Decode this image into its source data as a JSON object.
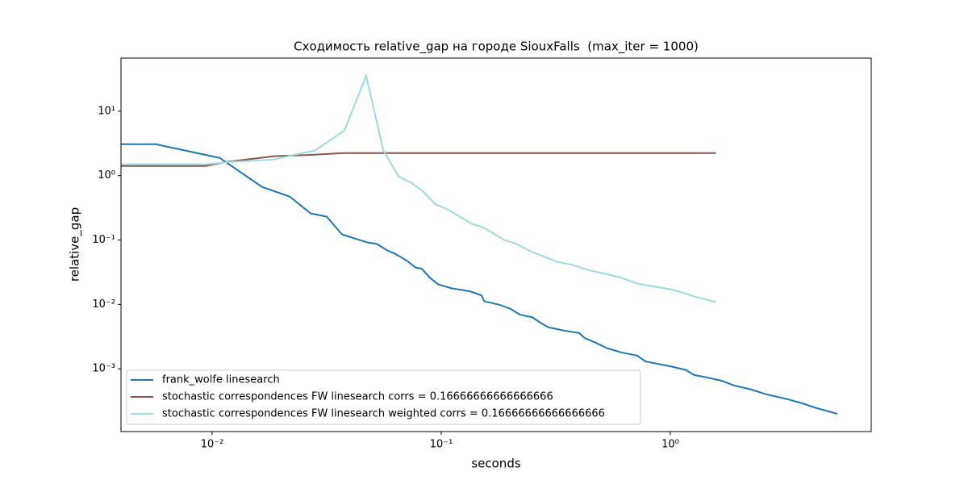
{
  "chart_data": {
    "type": "line",
    "title": "Сходимость relative_gap на городе SiouxFalls  (max_iter = 1000)",
    "x_label": "seconds",
    "y_label": "relative_gap",
    "xscale": "log",
    "yscale": "log",
    "xlim": [
      0.004,
      7.53
    ],
    "ylim": [
      0.000106,
      66.8
    ],
    "xticks": [
      {
        "value": 0.01,
        "label": "10⁻²"
      },
      {
        "value": 0.1,
        "label": "10⁻¹"
      },
      {
        "value": 1,
        "label": "10⁰"
      }
    ],
    "yticks": [
      {
        "value": 0.001,
        "label": "10⁻³"
      },
      {
        "value": 0.01,
        "label": "10⁻²"
      },
      {
        "value": 0.1,
        "label": "10⁻¹"
      },
      {
        "value": 1,
        "label": "10⁰"
      },
      {
        "value": 10,
        "label": "10¹"
      }
    ],
    "legend": "lower left",
    "series": [
      {
        "name": "frank_wolfe linesearch",
        "color": "#1f77b4",
        "x": [
          0.004,
          0.00567,
          0.0108,
          0.0165,
          0.0218,
          0.0269,
          0.0316,
          0.0369,
          0.0474,
          0.0523,
          0.0581,
          0.063,
          0.0711,
          0.0771,
          0.0823,
          0.0893,
          0.0968,
          0.111,
          0.134,
          0.15,
          0.154,
          0.181,
          0.201,
          0.221,
          0.25,
          0.271,
          0.294,
          0.346,
          0.4,
          0.423,
          0.478,
          0.527,
          0.61,
          0.718,
          0.779,
          0.991,
          1.17,
          1.27,
          1.43,
          1.68,
          1.9,
          2.24,
          2.63,
          3.22,
          3.78,
          4.27,
          5.36
        ],
        "values": [
          3.07,
          3.07,
          1.88,
          0.668,
          0.473,
          0.259,
          0.231,
          0.122,
          0.092,
          0.087,
          0.069,
          0.061,
          0.0472,
          0.0375,
          0.0356,
          0.0259,
          0.0205,
          0.0178,
          0.0159,
          0.0138,
          0.0112,
          0.0098,
          0.0085,
          0.0069,
          0.0063,
          0.0052,
          0.0044,
          0.0039,
          0.0036,
          0.003,
          0.0025,
          0.0021,
          0.0018,
          0.0016,
          0.0013,
          0.0011,
          0.00096,
          0.0008,
          0.00074,
          0.00065,
          0.00055,
          0.00048,
          0.0004,
          0.00034,
          0.00029,
          0.00025,
          0.0002
        ]
      },
      {
        "name": "stochastic correspondences FW linesearch corrs = 0.16666666666666666",
        "color": "#8c564b",
        "x": [
          0.004,
          0.00937,
          0.0115,
          0.0187,
          0.028,
          0.0372,
          1.58
        ],
        "values": [
          1.41,
          1.41,
          1.63,
          2.0,
          2.11,
          2.24,
          2.24
        ]
      },
      {
        "name": "stochastic correspondences FW linesearch weighted corrs = 0.16666666666666666",
        "color": "#9edae5",
        "x": [
          0.004,
          0.00937,
          0.012,
          0.0187,
          0.0229,
          0.028,
          0.0378,
          0.047,
          0.0558,
          0.0651,
          0.0741,
          0.0837,
          0.0945,
          0.105,
          0.116,
          0.136,
          0.151,
          0.167,
          0.188,
          0.213,
          0.23,
          0.25,
          0.282,
          0.319,
          0.375,
          0.441,
          0.518,
          0.61,
          0.718,
          0.845,
          0.991,
          1.12,
          1.27,
          1.58
        ],
        "values": [
          1.5,
          1.5,
          1.63,
          1.78,
          2.11,
          2.44,
          5.0,
          35.5,
          2.51,
          0.97,
          0.77,
          0.56,
          0.355,
          0.307,
          0.25,
          0.178,
          0.159,
          0.13,
          0.1,
          0.087,
          0.075,
          0.065,
          0.055,
          0.046,
          0.041,
          0.034,
          0.03,
          0.026,
          0.021,
          0.019,
          0.0173,
          0.0154,
          0.0133,
          0.0109
        ]
      }
    ]
  }
}
